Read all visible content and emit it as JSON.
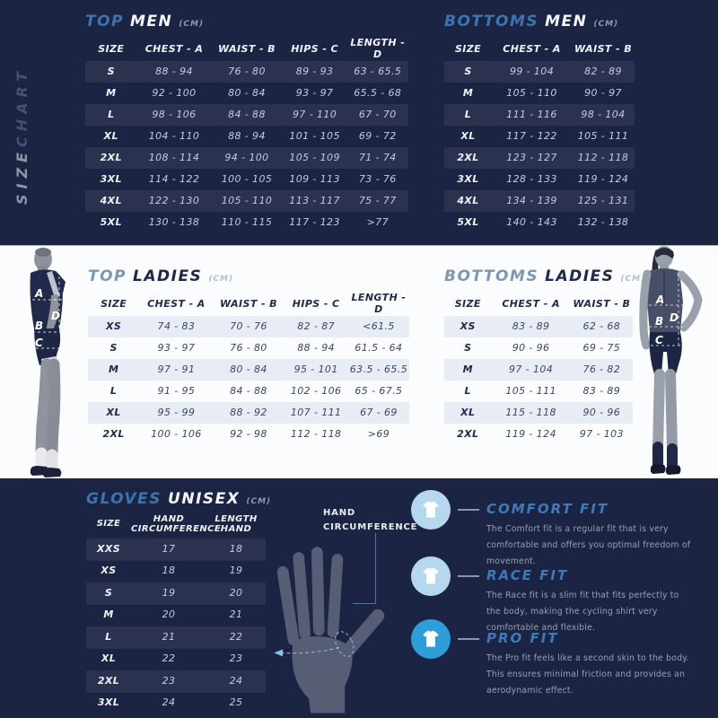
{
  "colors": {
    "background_dark": "#1c2444",
    "band_light": "#fbfcfd",
    "accent_blue_dark_band": "#3c74b0",
    "accent_blue_light_band": "#7d96b3",
    "fit_icon_lightblue": "#b5d8ef",
    "fit_icon_vividblue": "#2e9ed8",
    "shaded_row_light": "#e8edf5"
  },
  "sidebar": {
    "label_accent": "SIZE",
    "label_rest": "CHART"
  },
  "top_men": {
    "title_accent": "TOP",
    "title_main": "MEN",
    "unit": "(CM)",
    "headers": [
      "SIZE",
      "CHEST - A",
      "WAIST - B",
      "HIPS - C",
      "LENGTH - D"
    ],
    "rows": [
      [
        "S",
        "88 - 94",
        "76 - 80",
        "89 - 93",
        "63 - 65.5"
      ],
      [
        "M",
        "92 - 100",
        "80 - 84",
        "93 - 97",
        "65.5 - 68"
      ],
      [
        "L",
        "98 - 106",
        "84 - 88",
        "97 - 110",
        "67 - 70"
      ],
      [
        "XL",
        "104 - 110",
        "88 - 94",
        "101 - 105",
        "69 - 72"
      ],
      [
        "2XL",
        "108 - 114",
        "94 - 100",
        "105 - 109",
        "71 - 74"
      ],
      [
        "3XL",
        "114 - 122",
        "100 - 105",
        "109 - 113",
        "73 - 76"
      ],
      [
        "4XL",
        "122 - 130",
        "105 - 110",
        "113 - 117",
        "75 - 77"
      ],
      [
        "5XL",
        "130 - 138",
        "110 - 115",
        "117 - 123",
        ">77"
      ]
    ]
  },
  "bottoms_men": {
    "title_accent": "BOTTOMS",
    "title_main": "MEN",
    "unit": "(CM)",
    "headers": [
      "SIZE",
      "CHEST - A",
      "WAIST - B"
    ],
    "rows": [
      [
        "S",
        "99 - 104",
        "82 - 89"
      ],
      [
        "M",
        "105 - 110",
        "90 - 97"
      ],
      [
        "L",
        "111 - 116",
        "98 - 104"
      ],
      [
        "XL",
        "117 - 122",
        "105 - 111"
      ],
      [
        "2XL",
        "123 - 127",
        "112 - 118"
      ],
      [
        "3XL",
        "128 - 133",
        "119 - 124"
      ],
      [
        "4XL",
        "134 - 139",
        "125 - 131"
      ],
      [
        "5XL",
        "140 - 143",
        "132 - 138"
      ]
    ]
  },
  "top_ladies": {
    "title_accent": "TOP",
    "title_main": "LADIES",
    "unit": "(CM)",
    "headers": [
      "SIZE",
      "CHEST - A",
      "WAIST - B",
      "HIPS - C",
      "LENGTH - D"
    ],
    "rows": [
      [
        "XS",
        "74 - 83",
        "70 - 76",
        "82 - 87",
        "<61.5"
      ],
      [
        "S",
        "93 - 97",
        "76 - 80",
        "88 - 94",
        "61.5 - 64"
      ],
      [
        "M",
        "97 - 91",
        "80 - 84",
        "95 - 101",
        "63.5 - 65.5"
      ],
      [
        "L",
        "91 - 95",
        "84 - 88",
        "102 - 106",
        "65 - 67.5"
      ],
      [
        "XL",
        "95 - 99",
        "88 - 92",
        "107 - 111",
        "67 - 69"
      ],
      [
        "2XL",
        "100 - 106",
        "92 - 98",
        "112 - 118",
        ">69"
      ]
    ]
  },
  "bottoms_ladies": {
    "title_accent": "BOTTOMS",
    "title_main": "LADIES",
    "unit": "(CM)",
    "headers": [
      "SIZE",
      "CHEST - A",
      "WAIST - B"
    ],
    "rows": [
      [
        "XS",
        "83 - 89",
        "62 - 68"
      ],
      [
        "S",
        "90 - 96",
        "69 - 75"
      ],
      [
        "M",
        "97 - 104",
        "76 - 82"
      ],
      [
        "L",
        "105 - 111",
        "83 - 89"
      ],
      [
        "XL",
        "115 - 118",
        "90 - 96"
      ],
      [
        "2XL",
        "119 - 124",
        "97 - 103"
      ]
    ]
  },
  "gloves": {
    "title_accent": "GLOVES",
    "title_main": "UNISEX",
    "unit": "(CM)",
    "headers": [
      "SIZE",
      "HAND\nCIRCUMFERENCE",
      "LENGTH\nHAND"
    ],
    "rows": [
      [
        "XXS",
        "17",
        "18"
      ],
      [
        "XS",
        "18",
        "19"
      ],
      [
        "S",
        "19",
        "20"
      ],
      [
        "M",
        "20",
        "21"
      ],
      [
        "L",
        "21",
        "22"
      ],
      [
        "XL",
        "22",
        "23"
      ],
      [
        "2XL",
        "23",
        "24"
      ],
      [
        "3XL",
        "24",
        "25"
      ]
    ]
  },
  "hand_diagram": {
    "label": "HAND CIRCUMFERENCE"
  },
  "male_model": {
    "letters": [
      "A",
      "D",
      "B",
      "C"
    ]
  },
  "female_model": {
    "letters": [
      "A",
      "B",
      "D",
      "C"
    ]
  },
  "fits": [
    {
      "title": "COMFORT FIT",
      "description": "The Comfort fit is a regular fit that is very comfortable and offers you optimal freedom of movement."
    },
    {
      "title": "RACE FIT",
      "description": "The Race fit is a slim fit that fits perfectly to the body, making the cycling shirt very comfortable and flexible."
    },
    {
      "title": "PRO FIT",
      "description": "The Pro fit feels like a second skin to the body. This ensures minimal friction and provides an aerodynamic effect."
    }
  ]
}
